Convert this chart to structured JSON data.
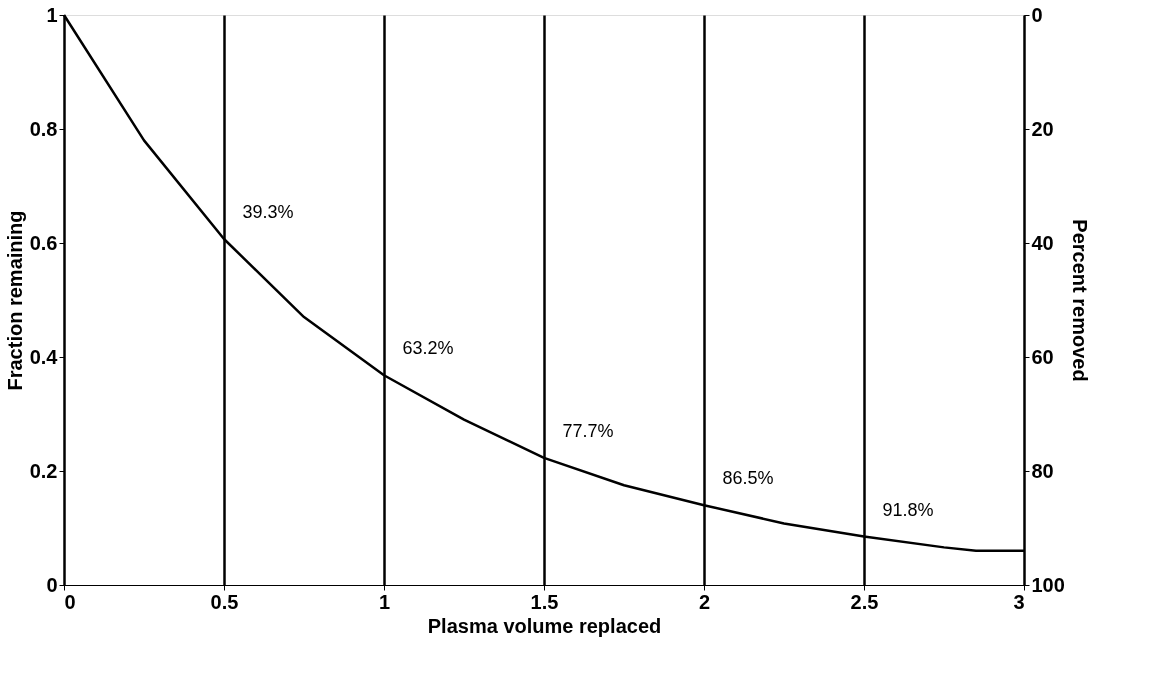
{
  "chart_data": {
    "type": "line",
    "xlabel": "Plasma volume replaced",
    "ylabel": "Fraction remaining",
    "y2label": "Percent removed",
    "x": [
      0,
      0.25,
      0.5,
      0.75,
      1,
      1.25,
      1.5,
      1.75,
      2,
      2.25,
      2.5,
      2.75,
      2.85,
      3
    ],
    "series": [
      {
        "color": "#000000",
        "values": [
          1.0,
          0.78,
          0.607,
          0.47,
          0.368,
          0.29,
          0.223,
          0.175,
          0.14,
          0.108,
          0.085,
          0.066,
          0.06,
          0.06
        ]
      }
    ],
    "xlim": [
      0,
      3
    ],
    "xticks": [
      0,
      0.5,
      1,
      1.5,
      2,
      2.5,
      3
    ],
    "ylim": [
      0,
      1
    ],
    "yticks": [
      0,
      0.2,
      0.4,
      0.6,
      0.8,
      1
    ],
    "y2lim": [
      100,
      0
    ],
    "y2ticks": [
      0,
      20,
      40,
      60,
      80,
      100
    ],
    "grid": "x",
    "marker": "none",
    "line_style": "solid",
    "annotations": [
      {
        "text": "39.3%",
        "x": 0.5,
        "y": 0.607
      },
      {
        "text": "63.2%",
        "x": 1,
        "y": 0.368
      },
      {
        "text": "77.7%",
        "x": 1.5,
        "y": 0.223
      },
      {
        "text": "86.5%",
        "x": 2,
        "y": 0.14
      },
      {
        "text": "91.8%",
        "x": 2.5,
        "y": 0.085
      }
    ]
  }
}
